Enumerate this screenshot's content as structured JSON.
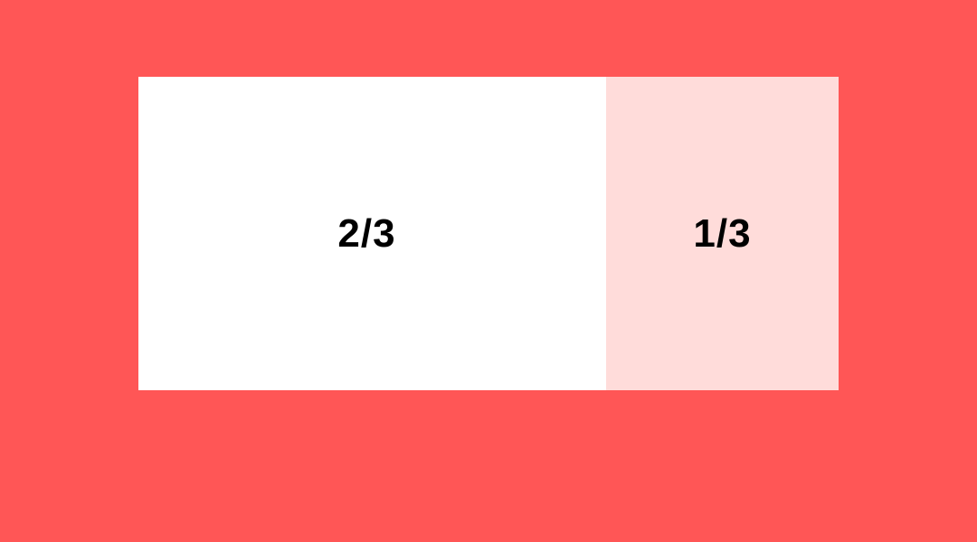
{
  "colors": {
    "background": "#FF5656",
    "large_panel": "#FFFFFF",
    "small_panel": "#FFDCDA",
    "label": "#000000"
  },
  "panels": [
    {
      "label": "2/3",
      "fraction": 0.6667
    },
    {
      "label": "1/3",
      "fraction": 0.3333
    }
  ]
}
